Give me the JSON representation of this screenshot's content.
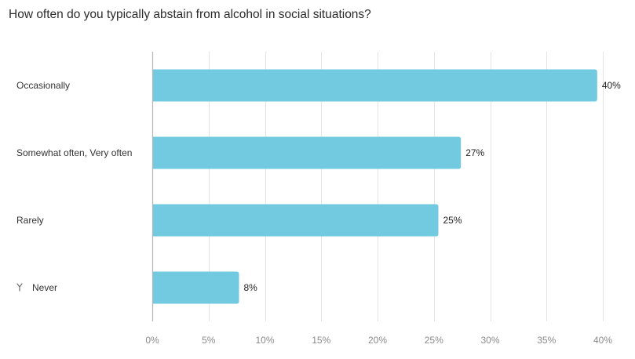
{
  "chart_data": {
    "type": "bar",
    "orientation": "horizontal",
    "title": "How often do you typically abstain from alcohol in social situations?",
    "xlabel": "",
    "ylabel": "",
    "categories": [
      "Occasionally",
      "Somewhat often, Very often",
      "Rarely",
      "Never"
    ],
    "values": [
      39.5,
      27.4,
      25.4,
      7.7
    ],
    "value_labels": [
      "40%",
      "27%",
      "25%",
      "8%"
    ],
    "category_icons": [
      null,
      null,
      null,
      "fork-icon"
    ],
    "xlim": [
      0,
      40
    ],
    "xticks": [
      0,
      5,
      10,
      15,
      20,
      25,
      30,
      35,
      40
    ],
    "xtick_labels": [
      "0%",
      "5%",
      "10%",
      "15%",
      "20%",
      "25%",
      "30%",
      "35%",
      "40%"
    ],
    "grid": true,
    "legend": "none",
    "bar_color": "#71cae0",
    "grid_color": "#e3e3e3",
    "axis_color": "#b5b5b5"
  }
}
